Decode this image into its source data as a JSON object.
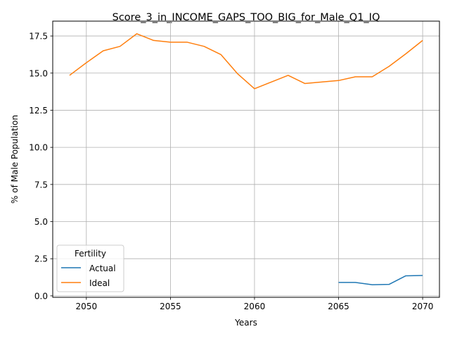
{
  "chart_data": {
    "type": "line",
    "title": "Score_3_in_INCOME_GAPS_TOO_BIG_for_Male_Q1_IQ",
    "xlabel": "Years",
    "ylabel": "% of Male Population",
    "xlim": [
      2048,
      2071
    ],
    "ylim": [
      -0.1,
      18.5
    ],
    "x_ticks": [
      2050,
      2055,
      2060,
      2065,
      2070
    ],
    "y_ticks": [
      0.0,
      2.5,
      5.0,
      7.5,
      10.0,
      12.5,
      15.0,
      17.5
    ],
    "x_tick_labels": [
      "2050",
      "2055",
      "2060",
      "2065",
      "2070"
    ],
    "y_tick_labels": [
      "0.0",
      "2.5",
      "5.0",
      "7.5",
      "10.0",
      "12.5",
      "15.0",
      "17.5"
    ],
    "grid": true,
    "legend": {
      "title": "Fertility",
      "placement": "lower-left"
    },
    "series": [
      {
        "name": "Actual",
        "color": "#1f77b4",
        "x": [
          2065,
          2066,
          2067,
          2068,
          2069,
          2070
        ],
        "y": [
          0.9,
          0.9,
          0.75,
          0.77,
          1.35,
          1.37
        ]
      },
      {
        "name": "Ideal",
        "color": "#ff7f0e",
        "x": [
          2049,
          2050,
          2051,
          2052,
          2053,
          2054,
          2055,
          2056,
          2057,
          2058,
          2059,
          2060,
          2061,
          2062,
          2063,
          2064,
          2065,
          2066,
          2067,
          2068,
          2069,
          2070
        ],
        "y": [
          14.85,
          15.7,
          16.5,
          16.8,
          17.65,
          17.2,
          17.08,
          17.08,
          16.8,
          16.25,
          14.95,
          13.95,
          14.4,
          14.85,
          14.3,
          14.4,
          14.5,
          14.75,
          14.75,
          15.45,
          16.3,
          17.2
        ]
      }
    ]
  }
}
